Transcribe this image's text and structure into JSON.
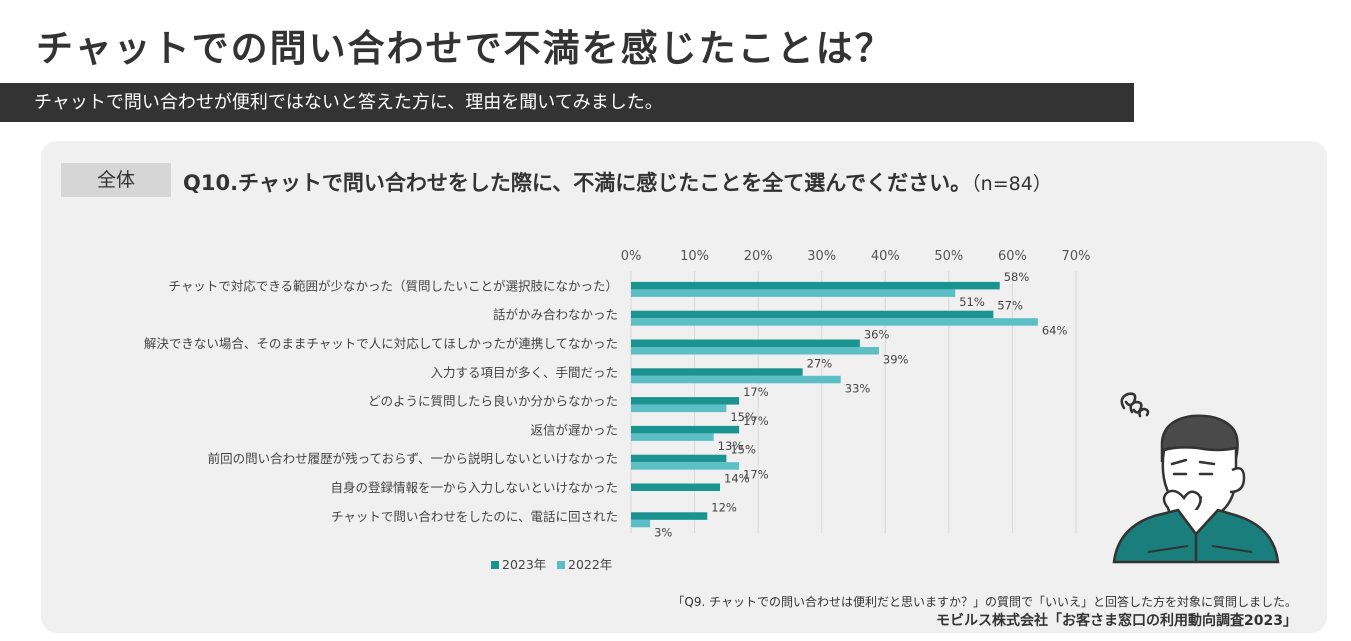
{
  "header": {
    "title": "チャットでの問い合わせで不満を感じたことは？",
    "subtitle": "チャットで問い合わせが便利ではないと答えた方に、理由を聞いてみました。"
  },
  "panel": {
    "segment": "全体",
    "question": "Q10.チャットで問い合わせをした際に、不満に感じたことを全て選んでください。",
    "sample": "（n=84）"
  },
  "footer": {
    "note": "「Q9. チャットでの問い合わせは便利だと思いますか？」の質問で「いいえ」と回答した方を対象に質問しました。",
    "source": "モビルス株式会社「お客さま窓口の利用動向調査2023」"
  },
  "colors": {
    "series_2023": "#1a9391",
    "series_2022": "#5cbfc6",
    "subtitle_bg": "#333333",
    "panel_bg": "#f0f0f0"
  },
  "chart_data": {
    "type": "bar",
    "orientation": "horizontal",
    "title": "Q10.チャットで問い合わせをした際に、不満に感じたことを全て選んでください。（n=84）",
    "xlim": [
      0,
      70
    ],
    "ticks": [
      0,
      10,
      20,
      30,
      40,
      50,
      60,
      70
    ],
    "tick_labels": [
      "0%",
      "10%",
      "20%",
      "30%",
      "40%",
      "50%",
      "60%",
      "70%"
    ],
    "unit": "%",
    "legend_position": "bottom",
    "categories": [
      "チャットで対応できる範囲が少なかった（質問したいことが選択肢になかった）",
      "話がかみ合わなかった",
      "解決できない場合、そのままチャットで人に対応してほしかったが連携してなかった",
      "入力する項目が多く、手間だった",
      "どのように質問したら良いか分からなかった",
      "返信が遅かった",
      "前回の問い合わせ履歴が残っておらず、一から説明しないといけなかった",
      "自身の登録情報を一から入力しないといけなかった",
      "チャットで問い合わせをしたのに、電話に回された"
    ],
    "series": [
      {
        "name": "2023年",
        "values": [
          58,
          57,
          36,
          27,
          17,
          17,
          15,
          14,
          12
        ]
      },
      {
        "name": "2022年",
        "values": [
          51,
          64,
          39,
          33,
          15,
          13,
          17,
          null,
          3
        ]
      }
    ]
  }
}
